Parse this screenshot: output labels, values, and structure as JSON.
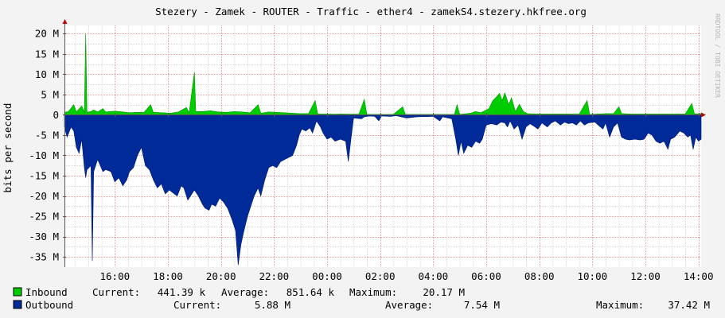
{
  "chart_data": {
    "type": "area",
    "title": "Stezery - Zamek - ROUTER - Traffic - ether4 - zamekS4.stezery.hkfree.org",
    "ylabel": "bits per second",
    "watermark": "RRDTOOL / TOBI OETIKER",
    "ylim": [
      -37500000,
      22000000
    ],
    "y_ticks": [
      {
        "value": 20000000,
        "label": "20 M"
      },
      {
        "value": 15000000,
        "label": "15 M"
      },
      {
        "value": 10000000,
        "label": "10 M"
      },
      {
        "value": 5000000,
        "label": "5 M"
      },
      {
        "value": 0,
        "label": "0"
      },
      {
        "value": -5000000,
        "label": "-5 M"
      },
      {
        "value": -10000000,
        "label": "-10 M"
      },
      {
        "value": -15000000,
        "label": "-15 M"
      },
      {
        "value": -20000000,
        "label": "-20 M"
      },
      {
        "value": -25000000,
        "label": "-25 M"
      },
      {
        "value": -30000000,
        "label": "-30 M"
      },
      {
        "value": -35000000,
        "label": "-35 M"
      }
    ],
    "x_range_hours": [
      14.1,
      38.1
    ],
    "x_ticks": [
      {
        "hour": 16,
        "label": "16:00"
      },
      {
        "hour": 18,
        "label": "18:00"
      },
      {
        "hour": 20,
        "label": "20:00"
      },
      {
        "hour": 22,
        "label": "22:00"
      },
      {
        "hour": 24,
        "label": "00:00"
      },
      {
        "hour": 26,
        "label": "02:00"
      },
      {
        "hour": 28,
        "label": "04:00"
      },
      {
        "hour": 30,
        "label": "06:00"
      },
      {
        "hour": 32,
        "label": "08:00"
      },
      {
        "hour": 34,
        "label": "10:00"
      },
      {
        "hour": 36,
        "label": "12:00"
      },
      {
        "hour": 38,
        "label": "14:00"
      }
    ],
    "grid": true,
    "colors": {
      "inbound": "#00cc00",
      "inbound_line": "#009900",
      "outbound": "#002a97",
      "outbound_line": "#001a77",
      "grid_major": "#e8a0a0",
      "grid_minor": "#d8d8d8",
      "axis": "#555555",
      "arrow": "#c00000",
      "canvas": "#ffffff",
      "background": "#f3f3f3"
    },
    "series": [
      {
        "name": "Inbound",
        "sign": 1,
        "points": [
          [
            14.1,
            600000
          ],
          [
            14.25,
            800000
          ],
          [
            14.45,
            2500000
          ],
          [
            14.55,
            700000
          ],
          [
            14.75,
            2200000
          ],
          [
            14.85,
            600000
          ],
          [
            14.9,
            20000000
          ],
          [
            14.95,
            600000
          ],
          [
            15.1,
            800000
          ],
          [
            15.2,
            1200000
          ],
          [
            15.35,
            700000
          ],
          [
            15.55,
            1500000
          ],
          [
            15.65,
            700000
          ],
          [
            16.0,
            900000
          ],
          [
            16.3,
            700000
          ],
          [
            16.55,
            500000
          ],
          [
            16.8,
            600000
          ],
          [
            17.1,
            600000
          ],
          [
            17.35,
            2500000
          ],
          [
            17.45,
            600000
          ],
          [
            17.8,
            500000
          ],
          [
            18.1,
            400000
          ],
          [
            18.4,
            700000
          ],
          [
            18.7,
            1800000
          ],
          [
            18.8,
            500000
          ],
          [
            19.0,
            10500000
          ],
          [
            19.05,
            800000
          ],
          [
            19.3,
            800000
          ],
          [
            19.6,
            1000000
          ],
          [
            19.9,
            700000
          ],
          [
            20.2,
            600000
          ],
          [
            20.5,
            800000
          ],
          [
            20.8,
            700000
          ],
          [
            21.1,
            500000
          ],
          [
            21.4,
            2500000
          ],
          [
            21.5,
            400000
          ],
          [
            21.8,
            700000
          ],
          [
            22.1,
            600000
          ],
          [
            22.4,
            500000
          ],
          [
            22.7,
            400000
          ],
          [
            23.0,
            300000
          ],
          [
            23.3,
            300000
          ],
          [
            23.55,
            3500000
          ],
          [
            23.65,
            200000
          ],
          [
            24.0,
            200000
          ],
          [
            24.3,
            150000
          ],
          [
            24.55,
            200000
          ],
          [
            24.9,
            150000
          ],
          [
            25.2,
            150000
          ],
          [
            25.4,
            3800000
          ],
          [
            25.5,
            100000
          ],
          [
            25.8,
            100000
          ],
          [
            26.1,
            100000
          ],
          [
            26.5,
            100000
          ],
          [
            26.85,
            2000000
          ],
          [
            26.95,
            100000
          ],
          [
            27.5,
            100000
          ],
          [
            28.0,
            100000
          ],
          [
            28.8,
            100000
          ],
          [
            28.9,
            2500000
          ],
          [
            29.0,
            100000
          ],
          [
            29.4,
            400000
          ],
          [
            29.6,
            800000
          ],
          [
            29.8,
            500000
          ],
          [
            30.1,
            1500000
          ],
          [
            30.25,
            3500000
          ],
          [
            30.4,
            4500000
          ],
          [
            30.5,
            5300000
          ],
          [
            30.6,
            3500000
          ],
          [
            30.7,
            5400000
          ],
          [
            30.85,
            2500000
          ],
          [
            30.95,
            4200000
          ],
          [
            31.1,
            800000
          ],
          [
            31.25,
            2600000
          ],
          [
            31.4,
            800000
          ],
          [
            31.55,
            300000
          ],
          [
            31.9,
            200000
          ],
          [
            32.2,
            200000
          ],
          [
            32.5,
            200000
          ],
          [
            32.8,
            200000
          ],
          [
            33.1,
            200000
          ],
          [
            33.5,
            150000
          ],
          [
            33.8,
            3500000
          ],
          [
            33.9,
            100000
          ],
          [
            34.2,
            200000
          ],
          [
            34.5,
            300000
          ],
          [
            34.8,
            300000
          ],
          [
            35.0,
            2000000
          ],
          [
            35.1,
            300000
          ],
          [
            35.5,
            200000
          ],
          [
            35.8,
            200000
          ],
          [
            36.1,
            200000
          ],
          [
            36.4,
            200000
          ],
          [
            36.7,
            200000
          ],
          [
            37.0,
            200000
          ],
          [
            37.3,
            200000
          ],
          [
            37.5,
            200000
          ],
          [
            37.75,
            2800000
          ],
          [
            37.85,
            200000
          ],
          [
            38.1,
            300000
          ]
        ]
      },
      {
        "name": "Outbound",
        "sign": -1,
        "points": [
          [
            14.1,
            -3000000
          ],
          [
            14.2,
            -5500000
          ],
          [
            14.35,
            -3000000
          ],
          [
            14.45,
            -4000000
          ],
          [
            14.55,
            -8000000
          ],
          [
            14.65,
            -9500000
          ],
          [
            14.75,
            -6000000
          ],
          [
            14.85,
            -13000000
          ],
          [
            14.9,
            -15500000
          ],
          [
            14.95,
            -13500000
          ],
          [
            15.1,
            -12500000
          ],
          [
            15.15,
            -36000000
          ],
          [
            15.2,
            -14000000
          ],
          [
            15.35,
            -11000000
          ],
          [
            15.45,
            -12500000
          ],
          [
            15.55,
            -14000000
          ],
          [
            15.65,
            -13500000
          ],
          [
            15.85,
            -14000000
          ],
          [
            16.0,
            -16500000
          ],
          [
            16.15,
            -15500000
          ],
          [
            16.3,
            -17500000
          ],
          [
            16.45,
            -16000000
          ],
          [
            16.55,
            -14000000
          ],
          [
            16.7,
            -13000000
          ],
          [
            16.85,
            -10000000
          ],
          [
            17.0,
            -8000000
          ],
          [
            17.15,
            -12500000
          ],
          [
            17.3,
            -13500000
          ],
          [
            17.45,
            -16000000
          ],
          [
            17.6,
            -18000000
          ],
          [
            17.75,
            -17000000
          ],
          [
            17.9,
            -19500000
          ],
          [
            18.05,
            -18500000
          ],
          [
            18.15,
            -19000000
          ],
          [
            18.35,
            -20000000
          ],
          [
            18.5,
            -17500000
          ],
          [
            18.6,
            -18000000
          ],
          [
            18.75,
            -21000000
          ],
          [
            18.85,
            -20000000
          ],
          [
            19.0,
            -18500000
          ],
          [
            19.15,
            -20000000
          ],
          [
            19.3,
            -22000000
          ],
          [
            19.4,
            -23000000
          ],
          [
            19.55,
            -23500000
          ],
          [
            19.65,
            -22000000
          ],
          [
            19.8,
            -22500000
          ],
          [
            19.95,
            -20500000
          ],
          [
            20.1,
            -21500000
          ],
          [
            20.25,
            -23000000
          ],
          [
            20.4,
            -25500000
          ],
          [
            20.55,
            -28500000
          ],
          [
            20.65,
            -37000000
          ],
          [
            20.75,
            -32000000
          ],
          [
            20.85,
            -29000000
          ],
          [
            21.0,
            -25000000
          ],
          [
            21.15,
            -22000000
          ],
          [
            21.25,
            -20000000
          ],
          [
            21.4,
            -18000000
          ],
          [
            21.5,
            -20000000
          ],
          [
            21.65,
            -16000000
          ],
          [
            21.8,
            -13000000
          ],
          [
            21.95,
            -12500000
          ],
          [
            22.1,
            -13000000
          ],
          [
            22.25,
            -11500000
          ],
          [
            22.4,
            -11000000
          ],
          [
            22.55,
            -10500000
          ],
          [
            22.7,
            -10000000
          ],
          [
            22.85,
            -7500000
          ],
          [
            22.95,
            -5000000
          ],
          [
            23.05,
            -3500000
          ],
          [
            23.2,
            -4000000
          ],
          [
            23.35,
            -3200000
          ],
          [
            23.45,
            -4500000
          ],
          [
            23.6,
            -1500000
          ],
          [
            23.75,
            -3000000
          ],
          [
            23.85,
            -4500000
          ],
          [
            24.0,
            -6000000
          ],
          [
            24.15,
            -5500000
          ],
          [
            24.3,
            -6500000
          ],
          [
            24.5,
            -6000000
          ],
          [
            24.7,
            -6500000
          ],
          [
            24.8,
            -11500000
          ],
          [
            24.9,
            -6000000
          ],
          [
            25.0,
            -800000
          ],
          [
            25.3,
            -1000000
          ],
          [
            25.4,
            -500000
          ],
          [
            25.6,
            -300000
          ],
          [
            25.8,
            -400000
          ],
          [
            25.95,
            -1500000
          ],
          [
            26.05,
            -300000
          ],
          [
            26.4,
            -400000
          ],
          [
            26.6,
            -200000
          ],
          [
            27.0,
            -800000
          ],
          [
            27.4,
            -500000
          ],
          [
            28.0,
            -400000
          ],
          [
            28.25,
            -1500000
          ],
          [
            28.35,
            -500000
          ],
          [
            28.7,
            -1000000
          ],
          [
            28.85,
            -6000000
          ],
          [
            28.95,
            -10000000
          ],
          [
            29.05,
            -6500000
          ],
          [
            29.15,
            -9500000
          ],
          [
            29.3,
            -7500000
          ],
          [
            29.45,
            -8000000
          ],
          [
            29.6,
            -6500000
          ],
          [
            29.75,
            -7000000
          ],
          [
            29.85,
            -6000000
          ],
          [
            30.0,
            -2500000
          ],
          [
            30.2,
            -2200000
          ],
          [
            30.4,
            -2500000
          ],
          [
            30.55,
            -1800000
          ],
          [
            30.7,
            -2000000
          ],
          [
            30.8,
            -3000000
          ],
          [
            30.9,
            -1500000
          ],
          [
            31.05,
            -3500000
          ],
          [
            31.2,
            -2500000
          ],
          [
            31.35,
            -6000000
          ],
          [
            31.5,
            -3000000
          ],
          [
            31.65,
            -2200000
          ],
          [
            31.8,
            -2800000
          ],
          [
            31.95,
            -3500000
          ],
          [
            32.1,
            -2000000
          ],
          [
            32.3,
            -3000000
          ],
          [
            32.45,
            -2000000
          ],
          [
            32.6,
            -1500000
          ],
          [
            32.8,
            -2500000
          ],
          [
            32.95,
            -1800000
          ],
          [
            33.1,
            -2200000
          ],
          [
            33.25,
            -2000000
          ],
          [
            33.4,
            -2500000
          ],
          [
            33.55,
            -1500000
          ],
          [
            33.7,
            -2500000
          ],
          [
            33.85,
            -2000000
          ],
          [
            34.1,
            -1800000
          ],
          [
            34.3,
            -3000000
          ],
          [
            34.4,
            -3500000
          ],
          [
            34.5,
            -2000000
          ],
          [
            34.65,
            -5500000
          ],
          [
            34.8,
            -3000000
          ],
          [
            34.95,
            -2000000
          ],
          [
            35.1,
            -5500000
          ],
          [
            35.25,
            -6000000
          ],
          [
            35.4,
            -6200000
          ],
          [
            35.6,
            -6000000
          ],
          [
            35.8,
            -6200000
          ],
          [
            35.95,
            -6000000
          ],
          [
            36.1,
            -4500000
          ],
          [
            36.25,
            -5000000
          ],
          [
            36.4,
            -6500000
          ],
          [
            36.55,
            -7000000
          ],
          [
            36.7,
            -6500000
          ],
          [
            36.85,
            -8500000
          ],
          [
            36.95,
            -6000000
          ],
          [
            37.1,
            -5500000
          ],
          [
            37.3,
            -4000000
          ],
          [
            37.45,
            -4500000
          ],
          [
            37.6,
            -5500000
          ],
          [
            37.7,
            -5000000
          ],
          [
            37.8,
            -8500000
          ],
          [
            37.9,
            -5500000
          ],
          [
            38.0,
            -6500000
          ],
          [
            38.1,
            -6000000
          ]
        ]
      }
    ]
  },
  "legend": {
    "inbound": {
      "name": "Inbound",
      "current_label": "Current:",
      "current": "441.39 k",
      "average_label": "Average:",
      "average": "851.64 k",
      "maximum_label": "Maximum:",
      "maximum": "20.17 M"
    },
    "outbound": {
      "name": "Outbound",
      "current_label": "Current:",
      "current": "5.88 M",
      "average_label": "Average:",
      "average": "7.54 M",
      "maximum_label": "Maximum:",
      "maximum": "37.42 M"
    }
  }
}
